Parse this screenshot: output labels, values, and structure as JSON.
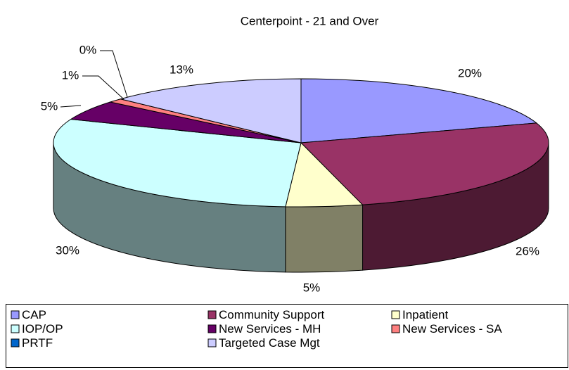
{
  "chart_data": {
    "type": "pie3d",
    "title": "Centerpoint - 21 and Over",
    "categories": [
      "CAP",
      "Community Support",
      "Inpatient",
      "IOP/OP",
      "New Services - MH",
      "New Services - SA",
      "PRTF",
      "Targeted Case Mgt"
    ],
    "values": [
      20,
      26,
      5,
      30,
      5,
      1,
      0,
      13
    ],
    "value_labels": [
      "20%",
      "26%",
      "5%",
      "30%",
      "5%",
      "1%",
      "0%",
      "13%"
    ],
    "colors": [
      "#9999ff",
      "#993366",
      "#ffffcc",
      "#ccffff",
      "#660066",
      "#ff8080",
      "#0066cc",
      "#ccccff"
    ],
    "legend": "bottom"
  }
}
